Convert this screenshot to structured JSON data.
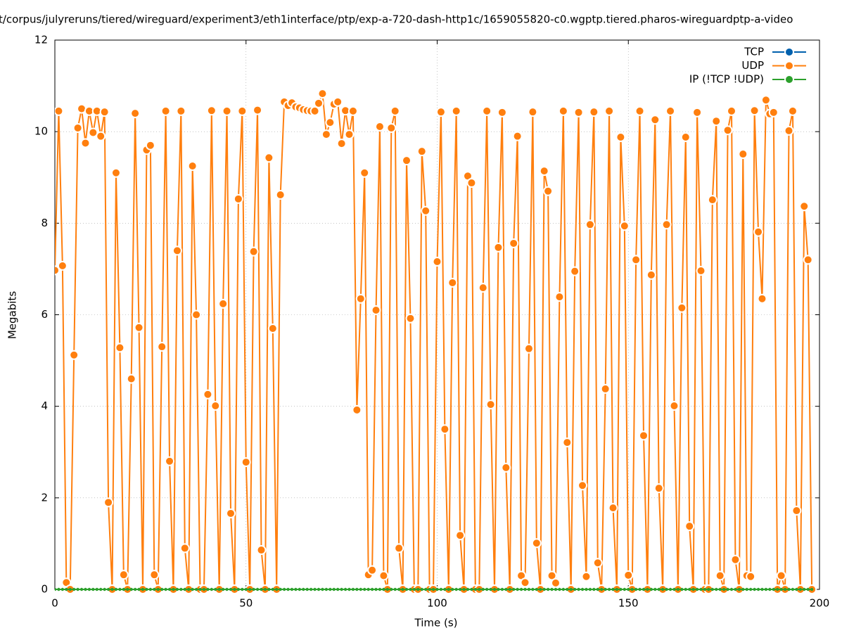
{
  "chart_data": {
    "type": "line",
    "title": "t/corpus/julyreruns/tiered/wireguard/experiment3/eth1interface/ptp/exp-a-720-dash-http1c/1659055820-c0.wgptp.tiered.pharos-wireguardptp-a-video",
    "xlabel": "Time (s)",
    "ylabel": "Megabits",
    "xlim": [
      0,
      200
    ],
    "xticks": [
      0,
      50,
      100,
      150,
      200
    ],
    "ylim": [
      0,
      12
    ],
    "yticks": [
      0,
      2,
      4,
      6,
      8,
      10,
      12
    ],
    "grid": true,
    "legend": "top-right",
    "x": [
      0,
      1,
      2,
      3,
      4,
      5,
      6,
      7,
      8,
      9,
      10,
      11,
      12,
      13,
      14,
      15,
      16,
      17,
      18,
      19,
      20,
      21,
      22,
      23,
      24,
      25,
      26,
      27,
      28,
      29,
      30,
      31,
      32,
      33,
      34,
      35,
      36,
      37,
      38,
      39,
      40,
      41,
      42,
      43,
      44,
      45,
      46,
      47,
      48,
      49,
      50,
      51,
      52,
      53,
      54,
      55,
      56,
      57,
      58,
      59,
      60,
      61,
      62,
      63,
      64,
      65,
      66,
      67,
      68,
      69,
      70,
      71,
      72,
      73,
      74,
      75,
      76,
      77,
      78,
      79,
      80,
      81,
      82,
      83,
      84,
      85,
      86,
      87,
      88,
      89,
      90,
      91,
      92,
      93,
      94,
      95,
      96,
      97,
      98,
      99,
      100,
      101,
      102,
      103,
      104,
      105,
      106,
      107,
      108,
      109,
      110,
      111,
      112,
      113,
      114,
      115,
      116,
      117,
      118,
      119,
      120,
      121,
      122,
      123,
      124,
      125,
      126,
      127,
      128,
      129,
      130,
      131,
      132,
      133,
      134,
      135,
      136,
      137,
      138,
      139,
      140,
      141,
      142,
      143,
      144,
      145,
      146,
      147,
      148,
      149,
      150,
      151,
      152,
      153,
      154,
      155,
      156,
      157,
      158,
      159,
      160,
      161,
      162,
      163,
      164,
      165,
      166,
      167,
      168,
      169,
      170,
      171,
      172,
      173,
      174,
      175,
      176,
      177,
      178,
      179,
      180,
      181,
      182,
      183,
      184,
      185,
      186,
      187,
      188,
      189,
      190,
      191,
      192,
      193,
      194,
      195,
      196,
      197,
      198
    ],
    "series": [
      {
        "name": "TCP",
        "color": "#0060ad",
        "values": [
          null,
          null,
          null,
          null,
          null,
          null,
          null,
          null,
          null,
          null,
          null,
          null,
          null,
          null,
          null,
          null,
          null,
          null,
          null,
          null,
          null,
          null,
          null,
          null,
          null,
          null,
          null,
          null,
          null,
          null,
          null,
          null,
          null,
          null,
          null,
          null,
          null,
          null,
          null,
          null,
          null,
          null,
          null,
          null,
          null,
          null,
          null,
          null,
          null,
          null,
          null,
          null,
          null,
          null,
          null,
          null,
          null,
          null,
          null,
          null,
          null,
          null,
          null,
          null,
          null,
          null,
          null,
          null,
          null,
          null,
          null,
          null,
          null,
          null,
          null,
          null,
          null,
          null,
          null,
          null,
          null,
          null,
          null,
          null,
          null,
          null,
          null,
          null,
          null,
          null,
          null,
          null,
          null,
          null,
          null,
          null,
          null,
          null,
          null,
          null,
          null,
          null,
          null,
          null,
          null,
          null,
          null,
          null,
          null,
          null,
          null,
          null,
          null,
          null,
          null,
          null,
          null,
          null,
          null,
          null,
          null,
          null,
          null,
          null,
          null,
          null,
          null,
          null,
          null,
          null,
          null,
          null,
          null,
          null,
          null,
          null,
          null,
          null,
          null,
          null,
          null,
          null,
          null,
          null,
          null,
          null,
          null,
          null,
          null,
          null,
          null,
          null,
          null,
          null,
          null,
          null,
          null,
          null,
          null,
          null,
          null,
          null,
          null,
          null,
          null,
          null,
          null,
          null,
          null,
          null,
          null,
          null,
          null,
          null,
          null,
          null,
          null,
          null,
          null,
          null,
          null,
          null,
          null,
          null,
          null,
          null,
          null,
          null,
          null,
          null,
          null,
          null,
          null,
          null,
          null,
          null,
          null,
          null,
          null
        ]
      },
      {
        "name": "UDP",
        "color": "#ff7f0e",
        "values": [
          6.97,
          10.45,
          7.07,
          0.15,
          0,
          5.12,
          10.08,
          10.5,
          9.75,
          10.45,
          9.98,
          10.45,
          9.9,
          10.43,
          1.9,
          0,
          9.1,
          5.28,
          0.32,
          0,
          4.6,
          10.4,
          5.72,
          0,
          9.6,
          9.7,
          0.32,
          0,
          5.3,
          10.45,
          2.8,
          0,
          7.4,
          10.45,
          0.9,
          0,
          9.25,
          6.0,
          0,
          0,
          4.26,
          10.46,
          4.01,
          0,
          6.24,
          10.45,
          1.66,
          0,
          8.53,
          10.45,
          2.78,
          0,
          7.38,
          10.47,
          0.86,
          0,
          9.43,
          5.7,
          0,
          8.62,
          10.65,
          10.57,
          10.63,
          10.54,
          10.52,
          10.48,
          10.46,
          10.45,
          10.45,
          10.62,
          10.83,
          9.94,
          10.2,
          10.6,
          10.65,
          9.74,
          10.46,
          9.94,
          10.45,
          3.92,
          6.35,
          9.1,
          0.32,
          0.42,
          6.1,
          10.11,
          0.3,
          0,
          10.08,
          10.45,
          0.9,
          0,
          9.37,
          5.92,
          0,
          0,
          9.57,
          8.27,
          0,
          0,
          7.16,
          10.43,
          3.5,
          0,
          6.7,
          10.45,
          1.18,
          0,
          9.03,
          8.88,
          0,
          0,
          6.59,
          10.45,
          4.04,
          0,
          7.47,
          10.42,
          2.66,
          0,
          7.56,
          9.9,
          0.3,
          0.15,
          5.26,
          10.43,
          1.01,
          0,
          9.14,
          8.7,
          0.3,
          0.14,
          6.39,
          10.45,
          3.21,
          0,
          6.95,
          10.42,
          2.27,
          0.28,
          7.97,
          10.43,
          0.58,
          0,
          4.38,
          10.45,
          1.78,
          0,
          9.88,
          7.94,
          0.31,
          0,
          7.2,
          10.45,
          3.36,
          0,
          6.87,
          10.26,
          2.21,
          0,
          7.97,
          10.45,
          4.01,
          0,
          6.15,
          9.88,
          1.38,
          0,
          10.42,
          6.96,
          0,
          0,
          8.51,
          10.23,
          0.3,
          0,
          10.03,
          10.45,
          0.65,
          0,
          9.51,
          0.3,
          0.28,
          10.46,
          7.81,
          6.35,
          10.69,
          10.39,
          10.42,
          0,
          0.3,
          0,
          10.02,
          10.45,
          1.72,
          0,
          8.37,
          7.2,
          0
        ]
      },
      {
        "name": "IP (!TCP  !UDP)",
        "color": "#2ca02c",
        "values": [
          0,
          0,
          0,
          0,
          0,
          0,
          0,
          0,
          0,
          0,
          0,
          0,
          0,
          0,
          0,
          0,
          0,
          0,
          0,
          0,
          0,
          0,
          0,
          0,
          0,
          0,
          0,
          0,
          0,
          0,
          0,
          0,
          0,
          0,
          0,
          0,
          0,
          0,
          0,
          0,
          0,
          0,
          0,
          0,
          0,
          0,
          0,
          0,
          0,
          0,
          0,
          0,
          0,
          0,
          0,
          0,
          0,
          0,
          0,
          0,
          0,
          0,
          0,
          0,
          0,
          0,
          0,
          0,
          0,
          0,
          0,
          0,
          0,
          0,
          0,
          0,
          0,
          0,
          0,
          0,
          0,
          0,
          0,
          0,
          0,
          0,
          0,
          0,
          0,
          0,
          0,
          0,
          0,
          0,
          0,
          0,
          0,
          0,
          0,
          0,
          0,
          0,
          0,
          0,
          0,
          0,
          0,
          0,
          0,
          0,
          0,
          0,
          0,
          0,
          0,
          0,
          0,
          0,
          0,
          0,
          0,
          0,
          0,
          0,
          0,
          0,
          0,
          0,
          0,
          0,
          0,
          0,
          0,
          0,
          0,
          0,
          0,
          0,
          0,
          0,
          0,
          0,
          0,
          0,
          0,
          0,
          0,
          0,
          0,
          0,
          0,
          0,
          0,
          0,
          0,
          0,
          0,
          0,
          0,
          0,
          0,
          0,
          0,
          0,
          0,
          0,
          0,
          0,
          0,
          0,
          0,
          0,
          0,
          0,
          0,
          0,
          0,
          0,
          0,
          0,
          0,
          0,
          0,
          0,
          0,
          0,
          0,
          0,
          0,
          0,
          0,
          0,
          0,
          0,
          0,
          0,
          0,
          0,
          0
        ]
      }
    ]
  }
}
